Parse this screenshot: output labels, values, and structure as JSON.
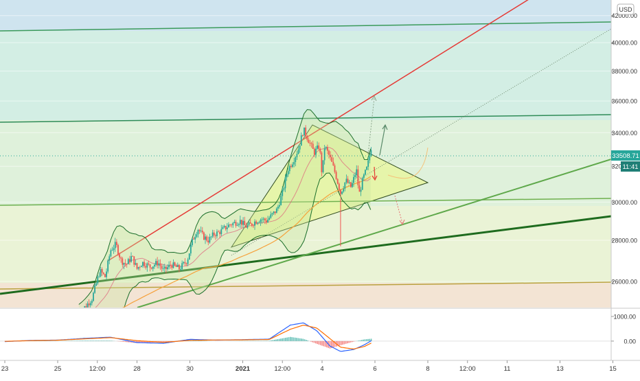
{
  "currency_label": "USD",
  "price_tag": "33508.71",
  "time_tag": "11:41",
  "colors": {
    "up": "#26a69a",
    "down": "#ef5350",
    "bb": "#1b6e2a",
    "red_line": "#e53935",
    "green_line": "#4caf50",
    "dark_green_line": "#1e7a1e",
    "olive_line": "#9cc24a",
    "ma": "#f6a13b",
    "macd": "#2962ff",
    "signal": "#ff6d00",
    "price_tag_bg": "#26a69a"
  },
  "chart_data": [
    {
      "type": "candlestick",
      "title": "",
      "y_axis_ticks": [
        "26000.00",
        "28000.00",
        "30000.00",
        "32000.00",
        "34000.00",
        "36000.00",
        "38000.00",
        "40000.00",
        "42000.00"
      ],
      "x_axis_ticks": [
        "23",
        "25",
        "12:00",
        "28",
        "30",
        "2021",
        "12:00",
        "4",
        "6",
        "8",
        "12:00",
        "11",
        "13",
        "15"
      ],
      "ylim": [
        24800,
        43200
      ],
      "y_scale": "log",
      "x_day_positions": [
        {
          "label": "23",
          "day": 23.0
        },
        {
          "label": "25",
          "day": 25.0
        },
        {
          "label": "12:00",
          "day": 26.5
        },
        {
          "label": "28",
          "day": 28.0
        },
        {
          "label": "30",
          "day": 30.0
        },
        {
          "label": "2021",
          "day": 32.0
        },
        {
          "label": "12:00",
          "day": 33.5
        },
        {
          "label": "4",
          "day": 35.0
        },
        {
          "label": "6",
          "day": 37.0
        },
        {
          "label": "8",
          "day": 39.0
        },
        {
          "label": "12:00",
          "day": 40.5
        },
        {
          "label": "11",
          "day": 42.0
        },
        {
          "label": "13",
          "day": 44.0
        },
        {
          "label": "15",
          "day": 46.0
        }
      ],
      "last_price": 33508.71,
      "price_path": [
        [
          25.8,
          24500
        ],
        [
          26.3,
          25200
        ],
        [
          26.6,
          26500
        ],
        [
          26.8,
          26200
        ],
        [
          27.0,
          27500
        ],
        [
          27.2,
          27800
        ],
        [
          27.4,
          27000
        ],
        [
          27.6,
          26800
        ],
        [
          27.8,
          27200
        ],
        [
          28.0,
          26600
        ],
        [
          28.2,
          26900
        ],
        [
          28.5,
          26700
        ],
        [
          28.8,
          26900
        ],
        [
          29.0,
          26500
        ],
        [
          29.3,
          26800
        ],
        [
          29.6,
          26600
        ],
        [
          29.9,
          27000
        ],
        [
          30.1,
          28000
        ],
        [
          30.3,
          28600
        ],
        [
          30.5,
          28200
        ],
        [
          30.7,
          28000
        ],
        [
          30.9,
          28300
        ],
        [
          31.1,
          28400
        ],
        [
          31.3,
          28600
        ],
        [
          31.5,
          28800
        ],
        [
          31.7,
          28900
        ],
        [
          31.9,
          29000
        ],
        [
          32.1,
          28700
        ],
        [
          32.3,
          28800
        ],
        [
          32.5,
          29000
        ],
        [
          32.7,
          29100
        ],
        [
          32.9,
          29000
        ],
        [
          33.1,
          29300
        ],
        [
          33.3,
          29600
        ],
        [
          33.5,
          30500
        ],
        [
          33.7,
          31800
        ],
        [
          33.9,
          32300
        ],
        [
          34.1,
          33000
        ],
        [
          34.3,
          34200
        ],
        [
          34.5,
          33500
        ],
        [
          34.7,
          32800
        ],
        [
          34.9,
          33200
        ],
        [
          35.0,
          31500
        ],
        [
          35.1,
          33200
        ],
        [
          35.3,
          32500
        ],
        [
          35.5,
          31600
        ],
        [
          35.7,
          30500
        ],
        [
          35.9,
          31200
        ],
        [
          36.1,
          30800
        ],
        [
          36.3,
          31800
        ],
        [
          36.4,
          30400
        ],
        [
          36.55,
          31300
        ],
        [
          36.7,
          31900
        ],
        [
          36.8,
          32600
        ],
        [
          36.9,
          33508.71
        ]
      ],
      "bollinger_band_visible": true,
      "moving_average_visible": true
    },
    {
      "type": "line",
      "title": "",
      "y_axis_ticks": [
        "1000.00",
        "0.00"
      ],
      "ylim": [
        -700,
        1250
      ],
      "macd_path": [
        [
          23,
          -20
        ],
        [
          24,
          30
        ],
        [
          25,
          40
        ],
        [
          26,
          110
        ],
        [
          27,
          160
        ],
        [
          28,
          -60
        ],
        [
          29,
          -90
        ],
        [
          30,
          70
        ],
        [
          31,
          40
        ],
        [
          32,
          60
        ],
        [
          33,
          80
        ],
        [
          33.8,
          650
        ],
        [
          34.3,
          740
        ],
        [
          34.8,
          420
        ],
        [
          35.3,
          -200
        ],
        [
          35.7,
          -420
        ],
        [
          36.2,
          -340
        ],
        [
          36.6,
          -150
        ],
        [
          36.9,
          40
        ]
      ],
      "signal_path": [
        [
          23,
          -10
        ],
        [
          24,
          20
        ],
        [
          25,
          35
        ],
        [
          26,
          90
        ],
        [
          27,
          140
        ],
        [
          28,
          20
        ],
        [
          29,
          -50
        ],
        [
          30,
          30
        ],
        [
          31,
          45
        ],
        [
          32,
          50
        ],
        [
          33,
          65
        ],
        [
          33.8,
          480
        ],
        [
          34.3,
          650
        ],
        [
          34.8,
          530
        ],
        [
          35.3,
          100
        ],
        [
          35.7,
          -250
        ],
        [
          36.2,
          -320
        ],
        [
          36.6,
          -220
        ],
        [
          36.9,
          -60
        ]
      ]
    }
  ]
}
